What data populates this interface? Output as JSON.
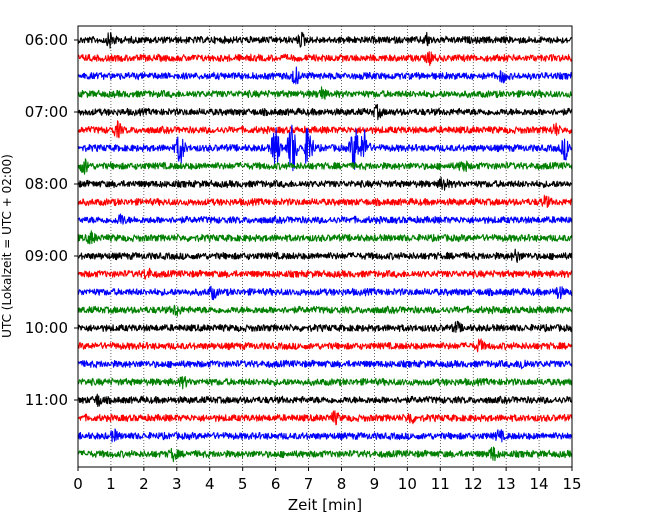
{
  "chart_data": {
    "type": "line",
    "subtype": "helicorder",
    "xlabel": "Zeit  [min]",
    "ylabel": "UTC (Lokalzeit = UTC + 02:00)",
    "xlim": [
      0,
      15
    ],
    "x_ticks": [
      0,
      1,
      2,
      3,
      4,
      5,
      6,
      7,
      8,
      9,
      10,
      11,
      12,
      13,
      14,
      15
    ],
    "grid": "vertical-dotted",
    "trace_colors": [
      "#000000",
      "#ff0000",
      "#0000ff",
      "#008000"
    ],
    "y_tick_labels": [
      "06:00",
      "07:00",
      "08:00",
      "09:00",
      "10:00",
      "11:00"
    ],
    "traces": [
      {
        "start": "06:00",
        "color": "#000000",
        "amplitude": 1.0,
        "events": [
          {
            "t": 1.0,
            "amp": 2.2
          },
          {
            "t": 6.8,
            "amp": 1.8
          },
          {
            "t": 10.6,
            "amp": 1.6
          }
        ]
      },
      {
        "start": "06:15",
        "color": "#ff0000",
        "amplitude": 1.0,
        "events": [
          {
            "t": 10.7,
            "amp": 1.5
          }
        ]
      },
      {
        "start": "06:30",
        "color": "#0000ff",
        "amplitude": 1.0,
        "events": [
          {
            "t": 6.6,
            "amp": 2.2
          },
          {
            "t": 12.9,
            "amp": 1.5
          }
        ]
      },
      {
        "start": "06:45",
        "color": "#008000",
        "amplitude": 1.0,
        "events": [
          {
            "t": 7.4,
            "amp": 1.6
          }
        ]
      },
      {
        "start": "07:00",
        "color": "#000000",
        "amplitude": 1.0,
        "events": [
          {
            "t": 9.1,
            "amp": 1.6
          }
        ]
      },
      {
        "start": "07:15",
        "color": "#ff0000",
        "amplitude": 1.0,
        "events": [
          {
            "t": 1.2,
            "amp": 2.0
          },
          {
            "t": 14.5,
            "amp": 1.5
          }
        ]
      },
      {
        "start": "07:30",
        "color": "#0000ff",
        "amplitude": 1.0,
        "events": [
          {
            "t": 3.1,
            "amp": 4.5
          },
          {
            "t": 6.0,
            "amp": 6.0
          },
          {
            "t": 6.5,
            "amp": 8.0
          },
          {
            "t": 7.0,
            "amp": 6.5
          },
          {
            "t": 8.4,
            "amp": 7.0
          },
          {
            "t": 8.7,
            "amp": 5.0
          },
          {
            "t": 14.8,
            "amp": 3.0
          }
        ]
      },
      {
        "start": "07:45",
        "color": "#008000",
        "amplitude": 1.0,
        "events": [
          {
            "t": 0.2,
            "amp": 2.0
          },
          {
            "t": 11.7,
            "amp": 1.6
          }
        ]
      },
      {
        "start": "08:00",
        "color": "#000000",
        "amplitude": 1.0,
        "events": [
          {
            "t": 11.1,
            "amp": 2.0
          }
        ]
      },
      {
        "start": "08:15",
        "color": "#ff0000",
        "amplitude": 1.0,
        "events": [
          {
            "t": 14.2,
            "amp": 1.4
          }
        ]
      },
      {
        "start": "08:30",
        "color": "#0000ff",
        "amplitude": 1.0,
        "events": [
          {
            "t": 1.3,
            "amp": 1.4
          }
        ]
      },
      {
        "start": "08:45",
        "color": "#008000",
        "amplitude": 1.0,
        "events": [
          {
            "t": 0.4,
            "amp": 1.6
          }
        ]
      },
      {
        "start": "09:00",
        "color": "#000000",
        "amplitude": 1.0,
        "events": [
          {
            "t": 13.3,
            "amp": 1.5
          }
        ]
      },
      {
        "start": "09:15",
        "color": "#ff0000",
        "amplitude": 1.0,
        "events": [
          {
            "t": 2.1,
            "amp": 1.4
          }
        ]
      },
      {
        "start": "09:30",
        "color": "#0000ff",
        "amplitude": 1.0,
        "events": [
          {
            "t": 4.1,
            "amp": 1.6
          },
          {
            "t": 14.6,
            "amp": 1.6
          }
        ]
      },
      {
        "start": "09:45",
        "color": "#008000",
        "amplitude": 1.0,
        "events": [
          {
            "t": 3.0,
            "amp": 1.5
          }
        ]
      },
      {
        "start": "10:00",
        "color": "#000000",
        "amplitude": 1.0,
        "events": [
          {
            "t": 11.5,
            "amp": 1.4
          }
        ]
      },
      {
        "start": "10:15",
        "color": "#ff0000",
        "amplitude": 1.0,
        "events": [
          {
            "t": 12.2,
            "amp": 1.6
          }
        ]
      },
      {
        "start": "10:30",
        "color": "#0000ff",
        "amplitude": 1.0,
        "events": [
          {
            "t": 13.5,
            "amp": 1.4
          }
        ]
      },
      {
        "start": "10:45",
        "color": "#008000",
        "amplitude": 1.0,
        "events": [
          {
            "t": 3.2,
            "amp": 1.3
          }
        ]
      },
      {
        "start": "11:00",
        "color": "#000000",
        "amplitude": 1.0,
        "events": [
          {
            "t": 0.6,
            "amp": 1.5
          }
        ]
      },
      {
        "start": "11:15",
        "color": "#ff0000",
        "amplitude": 1.0,
        "events": [
          {
            "t": 7.8,
            "amp": 1.6
          },
          {
            "t": 10.1,
            "amp": 1.5
          }
        ]
      },
      {
        "start": "11:30",
        "color": "#0000ff",
        "amplitude": 1.0,
        "events": [
          {
            "t": 1.1,
            "amp": 1.4
          },
          {
            "t": 12.8,
            "amp": 1.4
          }
        ]
      },
      {
        "start": "11:45",
        "color": "#008000",
        "amplitude": 1.0,
        "events": [
          {
            "t": 2.9,
            "amp": 1.5
          },
          {
            "t": 12.6,
            "amp": 1.8
          }
        ]
      }
    ]
  }
}
